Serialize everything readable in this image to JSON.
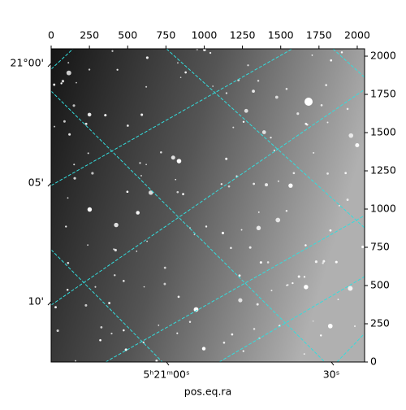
{
  "chart_data": {
    "type": "image",
    "xlim": [
      0,
      2048
    ],
    "ylim": [
      0,
      2048
    ],
    "xticks": [
      0,
      250,
      500,
      750,
      1000,
      1250,
      1500,
      1750,
      2000
    ],
    "yticks": [
      0,
      250,
      500,
      750,
      1000,
      1250,
      1500,
      1750,
      2000
    ],
    "ra_tick_labels": [
      "5ʰ21ᵐ00ˢ",
      "30ˢ"
    ],
    "dec_tick_labels": [
      "21°00'",
      "05'",
      "10'"
    ],
    "xlabel": "pos.eq.ra",
    "grid_color": "#33dddd"
  }
}
